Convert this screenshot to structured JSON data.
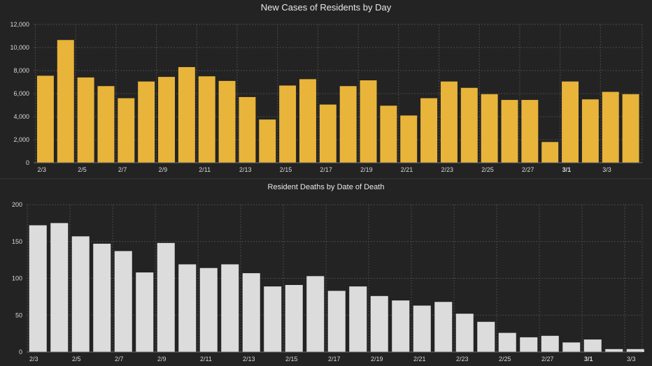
{
  "chart_data": [
    {
      "type": "bar",
      "title": "New Cases of Residents by Day",
      "xlabel": "",
      "ylabel": "",
      "ylim": [
        0,
        12000
      ],
      "yticks": [
        "0",
        "2,000",
        "4,000",
        "6,000",
        "8,000",
        "10,000",
        "12,000"
      ],
      "ytick_values": [
        0,
        2000,
        4000,
        6000,
        8000,
        10000,
        12000
      ],
      "xtick_labels": [
        "2/3",
        "2/5",
        "2/7",
        "2/9",
        "2/11",
        "2/13",
        "2/15",
        "2/17",
        "2/19",
        "2/21",
        "2/23",
        "2/25",
        "2/27",
        "3/1",
        "3/3"
      ],
      "bold_tick": "3/1",
      "grid": true,
      "color": "#e8b43a",
      "values": [
        7550,
        10650,
        7400,
        6650,
        5600,
        7050,
        7450,
        8300,
        7500,
        7100,
        5700,
        3750,
        6700,
        7250,
        5050,
        6650,
        7150,
        4950,
        4100,
        5600,
        7050,
        6500,
        5950,
        5450,
        5450,
        1800,
        7050,
        5500,
        6150,
        5950
      ]
    },
    {
      "type": "bar",
      "title": "Resident Deaths by Date of Death",
      "xlabel": "",
      "ylabel": "",
      "ylim": [
        0,
        200
      ],
      "yticks": [
        "0",
        "50",
        "100",
        "150",
        "200"
      ],
      "ytick_values": [
        0,
        50,
        100,
        150,
        200
      ],
      "xtick_labels": [
        "2/3",
        "2/5",
        "2/7",
        "2/9",
        "2/11",
        "2/13",
        "2/15",
        "2/17",
        "2/19",
        "2/21",
        "2/23",
        "2/25",
        "2/27",
        "3/1",
        "3/3"
      ],
      "bold_tick": "3/1",
      "grid": true,
      "color": "#dcdcdc",
      "values": [
        172,
        175,
        157,
        147,
        137,
        108,
        148,
        119,
        114,
        119,
        107,
        89,
        91,
        103,
        83,
        89,
        76,
        70,
        63,
        68,
        52,
        41,
        26,
        20,
        22,
        13,
        17,
        4,
        4
      ]
    }
  ]
}
